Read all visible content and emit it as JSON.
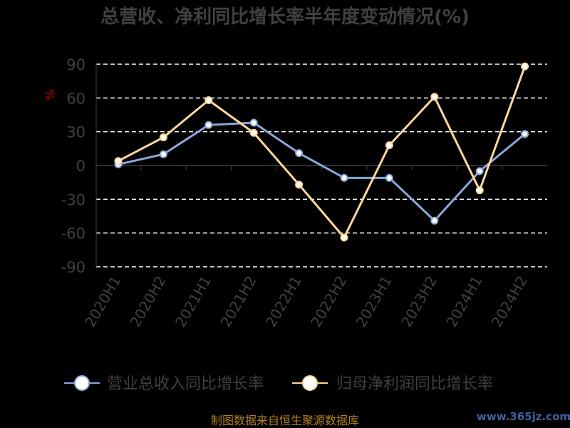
{
  "chart_data": {
    "type": "line",
    "title": "总营收、净利同比增长率半年度变动情况(%)",
    "ylabel": "%",
    "ylim": [
      -90,
      90
    ],
    "yticks": [
      90,
      60,
      30,
      0,
      -30,
      -60,
      -90
    ],
    "categories": [
      "2020H1",
      "2020H2",
      "2021H1",
      "2021H2",
      "2022H1",
      "2022H2",
      "2023H1",
      "2023H2",
      "2024H1",
      "2024H2"
    ],
    "grid": true,
    "legend": "bottom",
    "series": [
      {
        "name": "营业总收入同比增长率",
        "color": "#8aa8d8",
        "values": [
          1,
          10,
          36,
          38,
          11,
          -11,
          -11,
          -49,
          -5,
          28
        ]
      },
      {
        "name": "归母净利润同比增长率",
        "color": "#ffd79a",
        "values": [
          4,
          25,
          58,
          29,
          -17,
          -64,
          18,
          61,
          -22,
          88
        ]
      }
    ],
    "colors": {
      "background": "#000000",
      "title": "#404040",
      "ticks": "#404040",
      "gridline": "#ffffff",
      "axis": "#404040",
      "ylabel": "#cc0000",
      "legend_text": "#404040",
      "watermark": "#b08020",
      "site": "#4060a0"
    }
  },
  "footer": {
    "source": "制图数据来自恒生聚源数据库",
    "site": "www.365jz.com"
  }
}
